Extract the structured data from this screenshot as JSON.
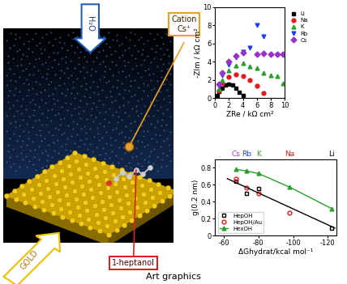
{
  "caption": "Art graphics",
  "scene": {
    "cation": "Cation\nCs⁺",
    "water": "H₂O",
    "gold": "GOLD",
    "alcohol": "1-heptanol"
  },
  "chart_data": [
    {
      "type": "scatter",
      "xlabel": "ZRe / kΩ cm²",
      "ylabel": "-ZIm / kΩ cm²",
      "xlim": [
        0,
        10
      ],
      "xticks": [
        0,
        2,
        4,
        6,
        8,
        10
      ],
      "ylim": [
        0,
        10
      ],
      "yticks": [
        0,
        2,
        4,
        6,
        8,
        10
      ],
      "legend": "right",
      "series": [
        {
          "name": "Li",
          "color": "#000000",
          "marker": "square",
          "x": [
            0.3,
            0.6,
            1.0,
            1.5,
            2.0,
            2.5,
            3.0,
            3.5,
            4.0
          ],
          "values": [
            0.3,
            0.7,
            1.1,
            1.4,
            1.5,
            1.4,
            1.1,
            0.6,
            0.3
          ]
        },
        {
          "name": "Na",
          "color": "#e41a1c",
          "marker": "circle",
          "x": [
            0.5,
            1.0,
            2.0,
            3.0,
            4.0,
            5.0,
            6.0,
            7.0
          ],
          "values": [
            0.8,
            1.6,
            2.3,
            2.6,
            2.4,
            2.0,
            1.3,
            0.5
          ]
        },
        {
          "name": "K",
          "color": "#2ca02c",
          "marker": "triangle",
          "x": [
            0.5,
            1.0,
            2.0,
            3.0,
            4.0,
            5.0,
            6.0,
            7.0,
            8.0,
            9.0,
            9.8
          ],
          "values": [
            1.0,
            2.0,
            3.0,
            3.6,
            3.8,
            3.5,
            3.3,
            2.8,
            2.5,
            2.4,
            1.6
          ]
        },
        {
          "name": "Rb",
          "color": "#1f3fff",
          "marker": "triangle_down",
          "x": [
            0.5,
            1.0,
            2.0,
            3.0,
            4.0,
            5.0,
            6.0,
            7.0
          ],
          "values": [
            1.3,
            2.5,
            3.7,
            4.5,
            5.1,
            5.5,
            8.0,
            6.8
          ]
        },
        {
          "name": "Cs",
          "color": "#9932cc",
          "marker": "diamond",
          "x": [
            0.5,
            1.0,
            2.0,
            3.0,
            4.0,
            6.0,
            7.0,
            8.0,
            9.0,
            9.8
          ],
          "values": [
            1.5,
            2.8,
            4.0,
            4.6,
            5.0,
            4.8,
            4.9,
            4.8,
            4.8,
            4.8
          ]
        }
      ]
    },
    {
      "type": "scatter",
      "xlabel": "ΔGhydrat/kcal mol⁻¹",
      "ylabel": "g(0.2 nm)",
      "xlim": [
        -55,
        -125
      ],
      "xticks": [
        -60,
        -80,
        -100,
        -120
      ],
      "ylim": [
        0,
        0.9
      ],
      "yticks": [
        0,
        0.2,
        0.4,
        0.6,
        0.8
      ],
      "legend": "lower left",
      "annotations": [
        {
          "text": "Cs",
          "x": -67,
          "color": "#9932cc"
        },
        {
          "text": "Rb",
          "x": -73,
          "color": "#1f3fff"
        },
        {
          "text": "K",
          "x": -80,
          "color": "#2ca02c"
        },
        {
          "text": "Na",
          "x": -98,
          "color": "#e41a1c"
        },
        {
          "text": "Li",
          "x": -122,
          "color": "#000000"
        }
      ],
      "series": [
        {
          "name": "HepOH",
          "color": "#000000",
          "marker": "open_square",
          "x": [
            -67,
            -73,
            -80,
            -122
          ],
          "values": [
            0.64,
            0.5,
            0.55,
            0.09
          ]
        },
        {
          "name": "HepOH/Au",
          "color": "#e41a1c",
          "marker": "open_circle",
          "x": [
            -67,
            -73,
            -80,
            -98
          ],
          "values": [
            0.67,
            0.56,
            0.5,
            0.27
          ]
        },
        {
          "name": "HexOH",
          "color": "#2ca02c",
          "marker": "triangle",
          "line_style": "solid",
          "x": [
            -67,
            -73,
            -80,
            -98,
            -122
          ],
          "values": [
            0.78,
            0.76,
            0.73,
            0.57,
            0.32
          ]
        },
        {
          "type": "line",
          "color": "#000000",
          "line_style": "solid",
          "x": [
            -62,
            -124
          ],
          "values": [
            0.67,
            0.09
          ]
        }
      ]
    }
  ]
}
